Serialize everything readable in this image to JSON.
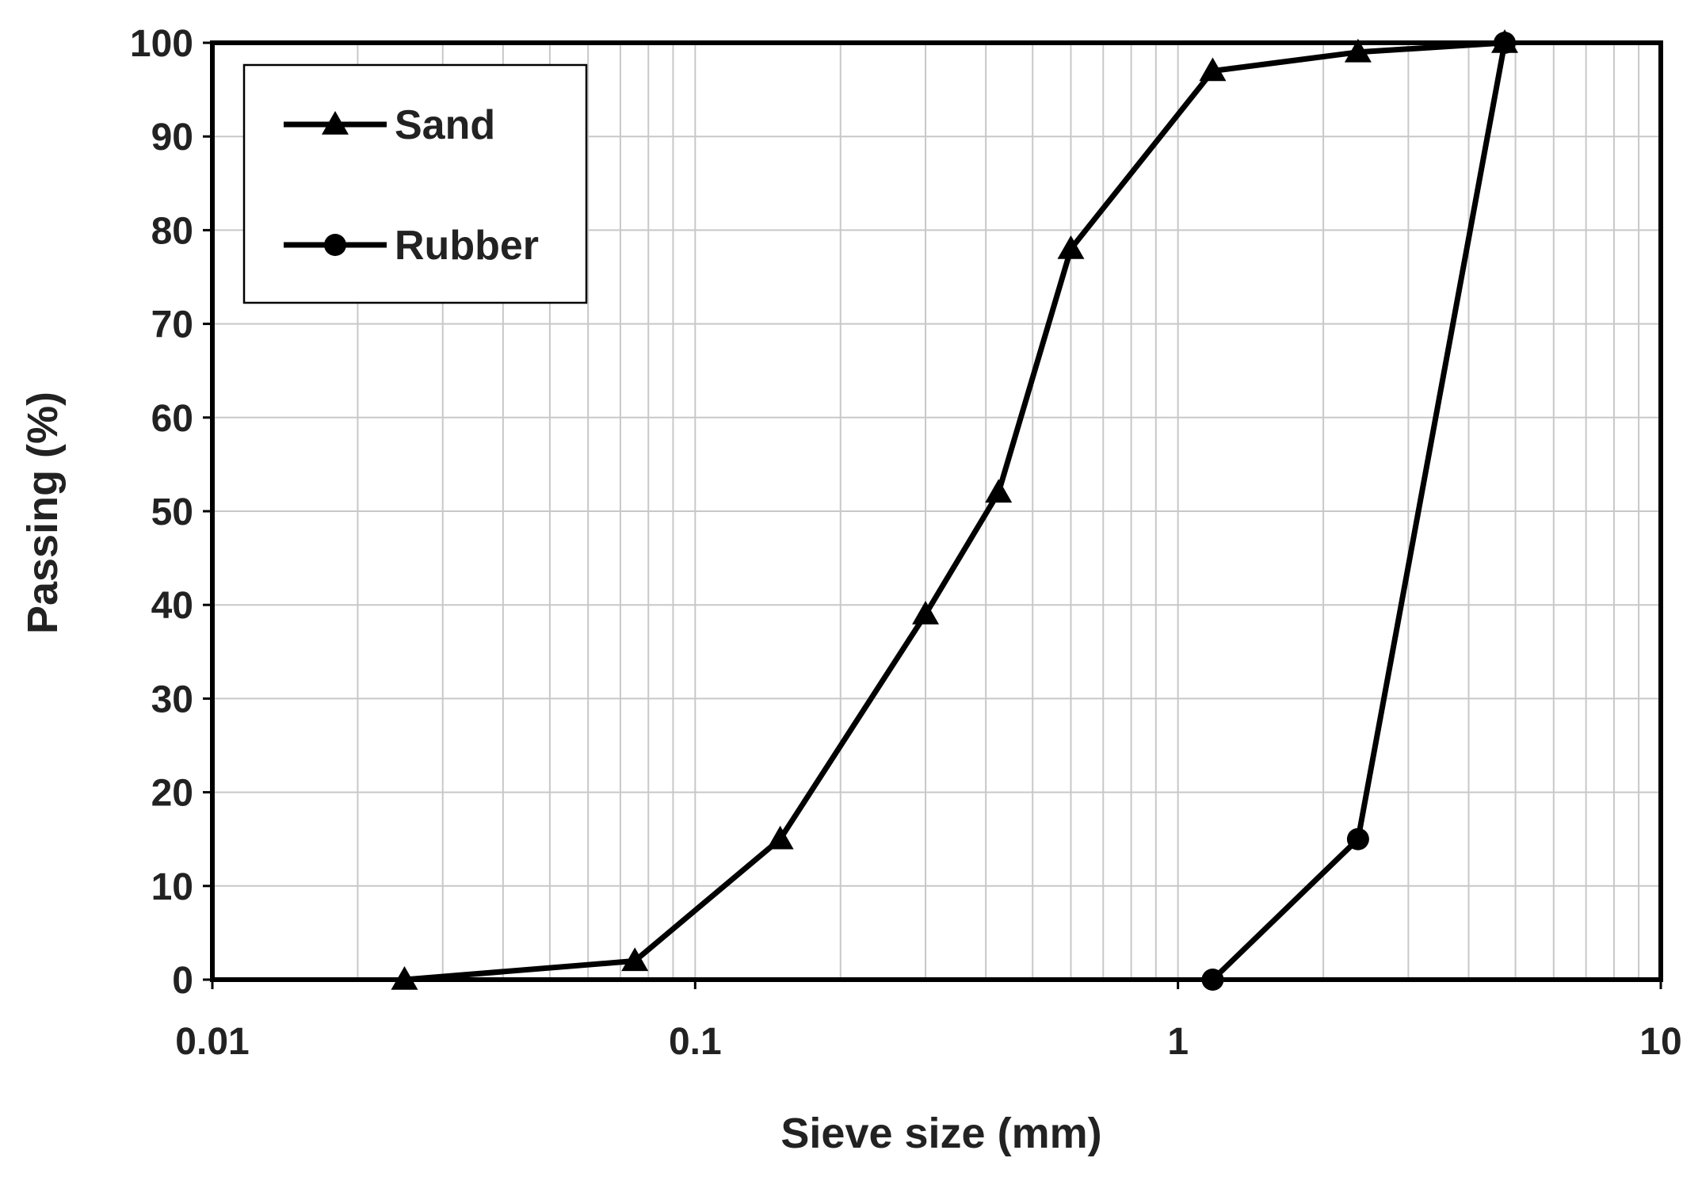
{
  "chart_data": {
    "type": "line",
    "xlabel": "Sieve size (mm)",
    "ylabel": "Passing (%)",
    "x_scale": "log",
    "xlim": [
      0.01,
      10
    ],
    "ylim": [
      0,
      100
    ],
    "x_ticks": [
      0.01,
      0.1,
      1,
      10
    ],
    "x_tick_labels": [
      "0.01",
      "0.1",
      "1",
      "10"
    ],
    "y_ticks": [
      0,
      10,
      20,
      30,
      40,
      50,
      60,
      70,
      80,
      90,
      100
    ],
    "y_tick_labels": [
      "0",
      "10",
      "20",
      "30",
      "40",
      "50",
      "60",
      "70",
      "80",
      "90",
      "100"
    ],
    "grid": true,
    "legend_position": "top-left",
    "series": [
      {
        "name": "Sand",
        "marker": "triangle",
        "color": "#000000",
        "x": [
          0.025,
          0.075,
          0.15,
          0.3,
          0.425,
          0.6,
          1.18,
          2.36,
          4.75
        ],
        "y": [
          0,
          2,
          15,
          39,
          52,
          78,
          97,
          99,
          100
        ]
      },
      {
        "name": "Rubber",
        "marker": "circle",
        "color": "#000000",
        "x": [
          1.18,
          2.36,
          4.75
        ],
        "y": [
          0,
          15,
          100
        ]
      }
    ]
  }
}
